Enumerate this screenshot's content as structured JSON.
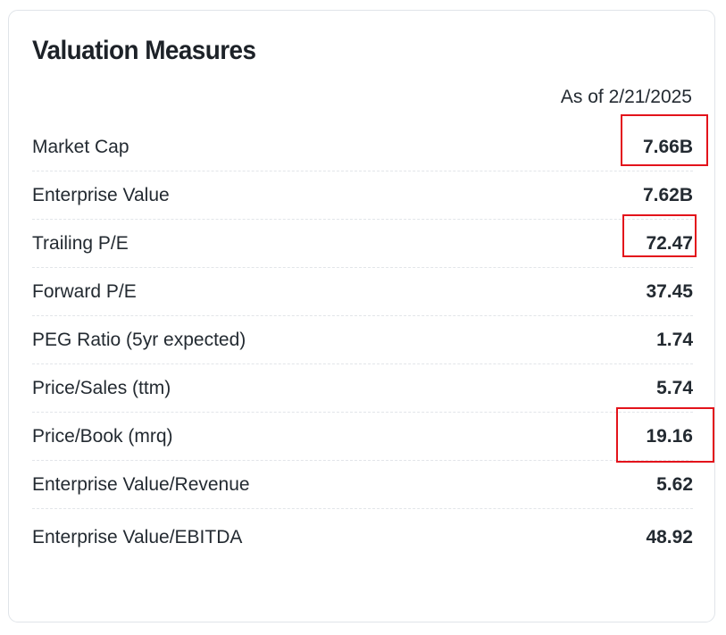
{
  "section": {
    "title": "Valuation Measures",
    "as_of": "As of 2/21/2025"
  },
  "rows": [
    {
      "label": "Market Cap",
      "value": "7.66B",
      "highlighted": true
    },
    {
      "label": "Enterprise Value",
      "value": "7.62B",
      "highlighted": false
    },
    {
      "label": "Trailing P/E",
      "value": "72.47",
      "highlighted": true
    },
    {
      "label": "Forward P/E",
      "value": "37.45",
      "highlighted": false
    },
    {
      "label": "PEG Ratio (5yr expected)",
      "value": "1.74",
      "highlighted": false
    },
    {
      "label": "Price/Sales (ttm)",
      "value": "5.74",
      "highlighted": false
    },
    {
      "label": "Price/Book (mrq)",
      "value": "19.16",
      "highlighted": true
    },
    {
      "label": "Enterprise Value/Revenue",
      "value": "5.62",
      "highlighted": false
    },
    {
      "label": "Enterprise Value/EBITDA",
      "value": "48.92",
      "highlighted": false
    }
  ],
  "colors": {
    "highlight_box": "#e3131b",
    "text": "#232a31",
    "divider": "#e2e5e9"
  }
}
